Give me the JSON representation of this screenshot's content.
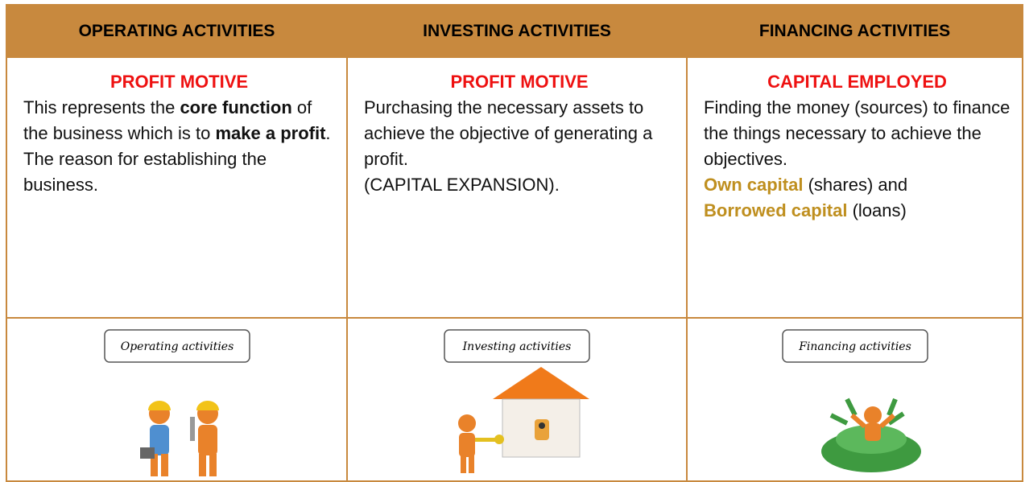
{
  "table": {
    "header": [
      "OPERATING ACTIVITIES",
      "INVESTING ACTIVITIES",
      "FINANCING ACTIVITIES"
    ],
    "columns": [
      {
        "subheading": "PROFIT MOTIVE",
        "paragraphs": [
          [
            {
              "text": "This represents the "
            },
            {
              "text": "core function",
              "bold": true
            },
            {
              "text": " of the business which is to "
            },
            {
              "text": "make a profit",
              "bold": true
            },
            {
              "text": ". The reason for establishing the business."
            }
          ]
        ],
        "image_label": "Operating activities"
      },
      {
        "subheading": "PROFIT MOTIVE",
        "paragraphs": [
          [
            {
              "text": "Purchasing the necessary assets to achieve the objective of generating a profit."
            }
          ],
          [
            {
              "text": "(CAPITAL EXPANSION)."
            }
          ]
        ],
        "image_label": "Investing activities"
      },
      {
        "subheading": "CAPITAL EMPLOYED",
        "paragraphs": [
          [
            {
              "text": "Finding the money (sources) to finance the things necessary to achieve the objectives."
            }
          ],
          [
            {
              "text": "Own capital",
              "bold": true,
              "color": "#bf8f1f"
            },
            {
              "text": " (shares) and"
            }
          ],
          [
            {
              "text": "Borrowed capital",
              "bold": true,
              "color": "#bf8f1f"
            },
            {
              "text": " (loans)"
            }
          ]
        ],
        "image_label": "Financing activities"
      }
    ]
  }
}
